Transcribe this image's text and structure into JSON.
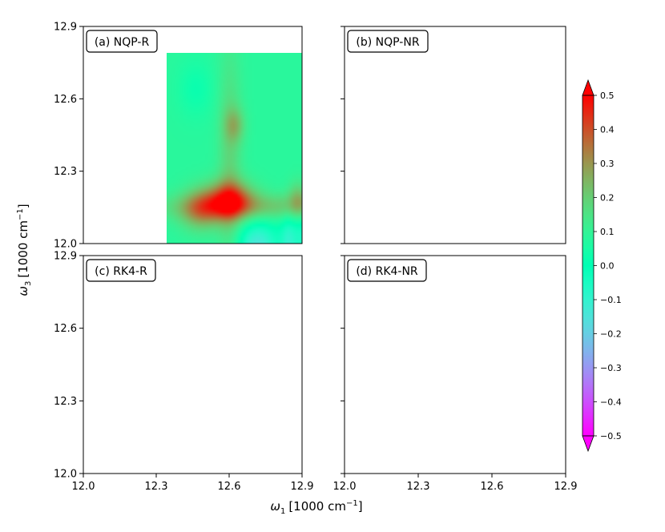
{
  "chart_data": {
    "type": "heatmap",
    "colormap": "rainbow",
    "x_axis": {
      "label_main": "ω",
      "label_sub": "1",
      "label_unit": "[1000 cm",
      "label_exp": "−1",
      "label_close": "]",
      "range": [
        12.0,
        12.9
      ],
      "ticks": [
        12.0,
        12.3,
        12.6,
        12.9
      ],
      "tick_labels": [
        "12.0",
        "12.3",
        "12.6",
        "12.9"
      ]
    },
    "y_axis": {
      "label_main": "ω",
      "label_sub": "3",
      "label_unit": "[1000 cm",
      "label_exp": "−1",
      "label_close": "]",
      "range": [
        12.0,
        12.9
      ],
      "ticks": [
        12.0,
        12.3,
        12.6,
        12.9
      ],
      "tick_labels": [
        "12.0",
        "12.3",
        "12.6",
        "12.9"
      ]
    },
    "panels": [
      {
        "id": "a",
        "title": "(a) NQP-R",
        "kind": "R",
        "method": "NQP"
      },
      {
        "id": "b",
        "title": "(b) NQP-NR",
        "kind": "NR",
        "method": "NQP"
      },
      {
        "id": "c",
        "title": "(c) RK4-R",
        "kind": "R",
        "method": "RK4"
      },
      {
        "id": "d",
        "title": "(d) RK4-NR",
        "kind": "NR",
        "method": "RK4"
      }
    ],
    "colorbar": {
      "range": [
        -0.5,
        0.5
      ],
      "ticks": [
        0.5,
        0.4,
        0.3,
        0.2,
        0.1,
        0.0,
        -0.1,
        -0.2,
        -0.3,
        -0.4,
        -0.5
      ],
      "tick_labels": [
        "0.5",
        "0.4",
        "0.3",
        "0.2",
        "0.1",
        "0.0",
        "−0.1",
        "−0.2",
        "−0.3",
        "−0.4",
        "−0.5"
      ],
      "extend": "both"
    }
  }
}
